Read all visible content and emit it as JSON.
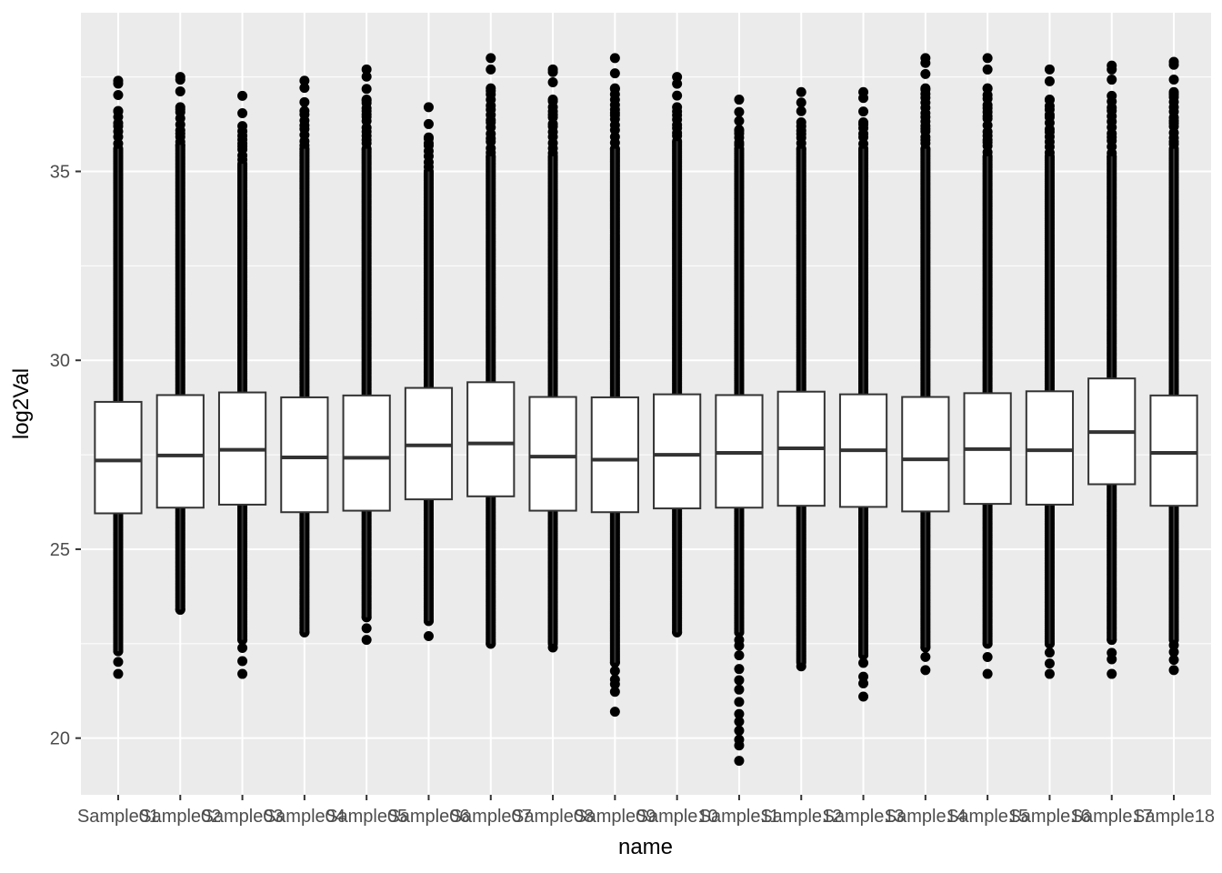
{
  "chart_data": {
    "type": "boxplot",
    "xlabel": "name",
    "ylabel": "log2Val",
    "ylim": [
      18.5,
      39.2
    ],
    "yticks": [
      20,
      25,
      30,
      35
    ],
    "grid": true,
    "legend": "none",
    "colors": {
      "panel": "#ebebeb",
      "grid_major": "#ffffff",
      "box_fill": "#ffffff",
      "box_line": "#333333",
      "points": "#000000"
    },
    "categories": [
      "Sample01",
      "Sample02",
      "Sample03",
      "Sample04",
      "Sample05",
      "Sample06",
      "Sample07",
      "Sample08",
      "Sample09",
      "Sample10",
      "Sample11",
      "Sample12",
      "Sample13",
      "Sample14",
      "Sample15",
      "Sample16",
      "Sample17",
      "Sample18"
    ],
    "series": [
      {
        "q1": 25.95,
        "median": 27.35,
        "q3": 28.9,
        "whisker_low": 22.3,
        "whisker_high": 35.6,
        "min": 21.7,
        "max": 37.4
      },
      {
        "q1": 26.1,
        "median": 27.48,
        "q3": 29.08,
        "whisker_low": 23.4,
        "whisker_high": 35.7,
        "min": 23.4,
        "max": 37.5
      },
      {
        "q1": 26.18,
        "median": 27.63,
        "q3": 29.15,
        "whisker_low": 22.6,
        "whisker_high": 35.2,
        "min": 21.7,
        "max": 37.0
      },
      {
        "q1": 25.98,
        "median": 27.43,
        "q3": 29.02,
        "whisker_low": 22.8,
        "whisker_high": 35.6,
        "min": 22.8,
        "max": 37.4
      },
      {
        "q1": 26.02,
        "median": 27.42,
        "q3": 29.07,
        "whisker_low": 23.2,
        "whisker_high": 35.6,
        "min": 22.6,
        "max": 37.7
      },
      {
        "q1": 26.32,
        "median": 27.75,
        "q3": 29.27,
        "whisker_low": 23.1,
        "whisker_high": 35.0,
        "min": 22.7,
        "max": 36.7
      },
      {
        "q1": 26.4,
        "median": 27.8,
        "q3": 29.42,
        "whisker_low": 22.5,
        "whisker_high": 35.4,
        "min": 22.5,
        "max": 38.0
      },
      {
        "q1": 26.02,
        "median": 27.45,
        "q3": 29.03,
        "whisker_low": 22.5,
        "whisker_high": 35.4,
        "min": 22.4,
        "max": 37.7
      },
      {
        "q1": 25.98,
        "median": 27.37,
        "q3": 29.02,
        "whisker_low": 22.0,
        "whisker_high": 35.6,
        "min": 20.7,
        "max": 38.0
      },
      {
        "q1": 26.08,
        "median": 27.5,
        "q3": 29.1,
        "whisker_low": 22.8,
        "whisker_high": 35.8,
        "min": 22.8,
        "max": 37.5
      },
      {
        "q1": 26.1,
        "median": 27.55,
        "q3": 29.08,
        "whisker_low": 22.8,
        "whisker_high": 35.6,
        "min": 19.4,
        "max": 36.9
      },
      {
        "q1": 26.15,
        "median": 27.67,
        "q3": 29.17,
        "whisker_low": 22.0,
        "whisker_high": 35.6,
        "min": 21.9,
        "max": 37.1
      },
      {
        "q1": 26.12,
        "median": 27.62,
        "q3": 29.1,
        "whisker_low": 22.2,
        "whisker_high": 35.6,
        "min": 21.1,
        "max": 37.1
      },
      {
        "q1": 26.0,
        "median": 27.38,
        "q3": 29.03,
        "whisker_low": 22.4,
        "whisker_high": 35.6,
        "min": 21.8,
        "max": 38.0
      },
      {
        "q1": 26.2,
        "median": 27.65,
        "q3": 29.13,
        "whisker_low": 22.5,
        "whisker_high": 35.4,
        "min": 21.7,
        "max": 38.0
      },
      {
        "q1": 26.18,
        "median": 27.62,
        "q3": 29.18,
        "whisker_low": 22.5,
        "whisker_high": 35.4,
        "min": 21.7,
        "max": 37.7
      },
      {
        "q1": 26.72,
        "median": 28.1,
        "q3": 29.52,
        "whisker_low": 22.6,
        "whisker_high": 35.4,
        "min": 21.7,
        "max": 37.8
      },
      {
        "q1": 26.15,
        "median": 27.55,
        "q3": 29.07,
        "whisker_low": 22.6,
        "whisker_high": 35.6,
        "min": 21.8,
        "max": 37.9
      }
    ]
  }
}
